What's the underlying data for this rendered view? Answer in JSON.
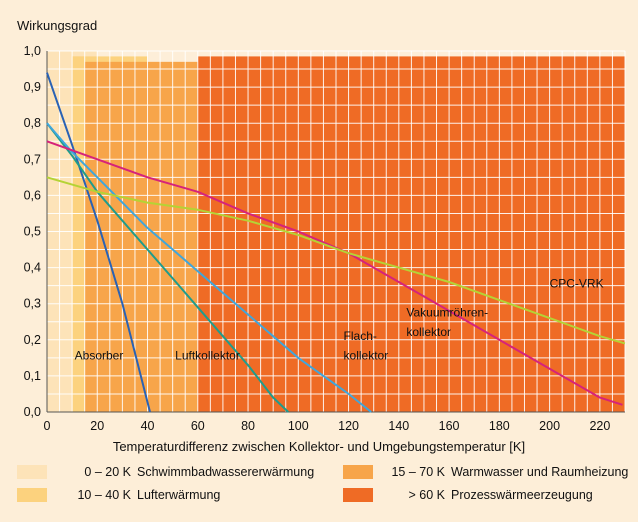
{
  "chart_data": {
    "type": "line",
    "title": "",
    "ylabel": "Wirkungsgrad",
    "xlabel": "Temperaturdifferenz zwischen Kollektor- und Umgebungstemperatur [K]",
    "xlim": [
      0,
      230
    ],
    "ylim": [
      0,
      1.0
    ],
    "xticks": [
      "0",
      "20",
      "40",
      "60",
      "80",
      "100",
      "120",
      "140",
      "160",
      "180",
      "200",
      "220"
    ],
    "yticks": [
      "0,0",
      "0,1",
      "0,2",
      "0,3",
      "0,4",
      "0,5",
      "0,6",
      "0,7",
      "0,8",
      "0,9",
      "1,0"
    ],
    "grid": true,
    "bands": [
      {
        "from": 0,
        "to": 20,
        "range": "0 – 20 K",
        "label": "Schwimmbadwassererwärmung",
        "color": "#fde3b8"
      },
      {
        "from": 10,
        "to": 40,
        "range": "10 – 40 K",
        "label": "Lufterwärmung",
        "color": "#fcd27e"
      },
      {
        "from": 15,
        "to": 70,
        "range": "15 – 70 K",
        "label": "Warmwasser und Raumheizung",
        "color": "#f7a54a"
      },
      {
        "from": 60,
        "to": 230,
        "range": "> 60 K",
        "label": "Prozesswärmeerzeugung",
        "color": "#ef6b25"
      }
    ],
    "series": [
      {
        "name": "Absorber",
        "color": "#2a62b4",
        "points": [
          [
            0,
            0.94
          ],
          [
            10,
            0.74
          ],
          [
            20,
            0.53
          ],
          [
            30,
            0.3
          ],
          [
            41,
            0.0
          ]
        ]
      },
      {
        "name": "Luftkollektor",
        "color": "#1f9c8c",
        "points": [
          [
            0,
            0.8
          ],
          [
            10,
            0.71
          ],
          [
            20,
            0.61
          ],
          [
            30,
            0.53
          ],
          [
            40,
            0.45
          ],
          [
            50,
            0.37
          ],
          [
            60,
            0.29
          ],
          [
            70,
            0.21
          ],
          [
            80,
            0.13
          ],
          [
            90,
            0.04
          ],
          [
            96,
            0.0
          ]
        ]
      },
      {
        "name": "Flachkollektor",
        "color": "#3fa6dc",
        "points": [
          [
            0,
            0.8
          ],
          [
            10,
            0.72
          ],
          [
            20,
            0.65
          ],
          [
            30,
            0.58
          ],
          [
            40,
            0.51
          ],
          [
            50,
            0.45
          ],
          [
            60,
            0.39
          ],
          [
            70,
            0.33
          ],
          [
            80,
            0.27
          ],
          [
            90,
            0.21
          ],
          [
            100,
            0.15
          ],
          [
            110,
            0.1
          ],
          [
            120,
            0.05
          ],
          [
            129,
            0.0
          ]
        ]
      },
      {
        "name": "Vakuumröhrenkollektor",
        "color": "#d6237a",
        "points": [
          [
            0,
            0.75
          ],
          [
            20,
            0.7
          ],
          [
            40,
            0.65
          ],
          [
            60,
            0.61
          ],
          [
            80,
            0.55
          ],
          [
            100,
            0.5
          ],
          [
            120,
            0.44
          ],
          [
            140,
            0.36
          ],
          [
            160,
            0.28
          ],
          [
            180,
            0.2
          ],
          [
            200,
            0.12
          ],
          [
            220,
            0.04
          ],
          [
            229,
            0.02
          ]
        ]
      },
      {
        "name": "CPC-VRK",
        "color": "#b5d335",
        "points": [
          [
            0,
            0.65
          ],
          [
            20,
            0.61
          ],
          [
            40,
            0.58
          ],
          [
            60,
            0.56
          ],
          [
            80,
            0.53
          ],
          [
            100,
            0.49
          ],
          [
            120,
            0.44
          ],
          [
            140,
            0.4
          ],
          [
            160,
            0.36
          ],
          [
            180,
            0.31
          ],
          [
            200,
            0.26
          ],
          [
            220,
            0.21
          ],
          [
            230,
            0.19
          ]
        ]
      }
    ],
    "curve_labels": [
      {
        "text": "Absorber",
        "x": 11,
        "y": 0.145
      },
      {
        "text": "Luftkollektor",
        "x": 51,
        "y": 0.145
      },
      {
        "text": "Flach-",
        "x": 118,
        "y": 0.2
      },
      {
        "text": "kollektor",
        "x": 118,
        "y": 0.145
      },
      {
        "text": "Vakuumröhren-",
        "x": 143,
        "y": 0.265
      },
      {
        "text": "kollektor",
        "x": 143,
        "y": 0.21
      },
      {
        "text": "CPC-VRK",
        "x": 200,
        "y": 0.345
      }
    ]
  }
}
